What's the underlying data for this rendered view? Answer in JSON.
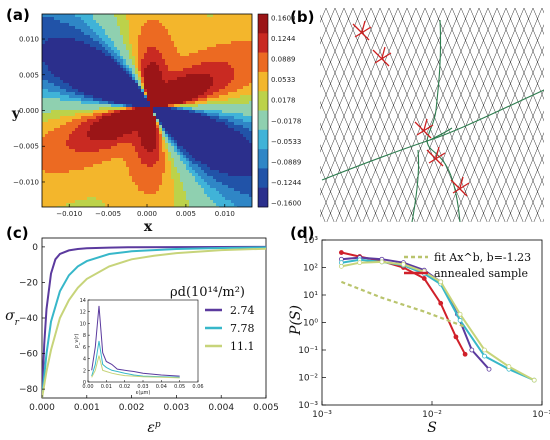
{
  "panels": [
    {
      "label": "(a)"
    },
    {
      "label": "(b)"
    },
    {
      "label": "(c)"
    },
    {
      "label": "(d)"
    }
  ],
  "chart_data": [
    {
      "panel": "(a)",
      "type": "heatmap",
      "xlabel": "x",
      "ylabel": "y",
      "xlim": [
        -0.0135,
        0.0135
      ],
      "ylim": [
        -0.0135,
        0.0135
      ],
      "x_ticks": [
        "−0.010",
        "−0.005",
        "0.000",
        "0.005",
        "0.010"
      ],
      "x_tick_values": [
        -0.01,
        -0.005,
        0,
        0.005,
        0.01
      ],
      "y_ticks": [
        "0.010",
        "0.005",
        "0.000",
        "−0.005",
        "−0.010"
      ],
      "y_tick_values": [
        0.01,
        0.005,
        0,
        -0.005,
        -0.01
      ],
      "colorbar_levels": [
        "0.1600",
        "0.1244",
        "0.0889",
        "0.0533",
        "0.0178",
        "−0.0178",
        "−0.0533",
        "−0.0889",
        "−0.1244",
        "−0.1600"
      ],
      "colorbar_values": [
        0.16,
        0.1244,
        0.0889,
        0.0533,
        0.0178,
        -0.0178,
        -0.0533,
        -0.0889,
        -0.1244,
        -0.16
      ],
      "colormap": [
        "#2b2f8c",
        "#2153a8",
        "#2f86c6",
        "#40b3d8",
        "#8fd0b0",
        "#bcd24a",
        "#f3b62c",
        "#ec6a22",
        "#c92a22",
        "#9b1517"
      ]
    },
    {
      "panel": "(b)",
      "type": "diagram",
      "grid_color": "#333333",
      "line_color": "#2e7d4f",
      "dislocation_color": "#cc1f1f"
    },
    {
      "panel": "(c)",
      "type": "line",
      "xlabel": "ε^p",
      "ylabel": "σ_r",
      "xlim": [
        0.0,
        0.005
      ],
      "ylim": [
        -85,
        5
      ],
      "x_ticks": [
        "0.000",
        "0.001",
        "0.002",
        "0.003",
        "0.004",
        "0.005"
      ],
      "x_tick_values": [
        0,
        0.001,
        0.002,
        0.003,
        0.004,
        0.005
      ],
      "y_ticks": [
        "0",
        "−20",
        "−40",
        "−60",
        "−80"
      ],
      "y_tick_values": [
        0,
        -20,
        -40,
        -60,
        -80
      ],
      "legend_title": "ρd(10¹⁴/m²)",
      "series": [
        {
          "name": "2.74",
          "color": "#5b3a9e",
          "x": [
            0,
            5e-05,
            0.0001,
            0.0002,
            0.0003,
            0.0004,
            0.0006,
            0.0008,
            0.001,
            0.0015,
            0.002,
            0.003,
            0.004,
            0.005
          ],
          "y": [
            -85,
            -55,
            -35,
            -15,
            -7,
            -4,
            -2,
            -1.2,
            -0.8,
            -0.4,
            -0.2,
            -0.1,
            -0.05,
            0
          ]
        },
        {
          "name": "7.78",
          "color": "#37b7c9",
          "x": [
            0,
            0.0001,
            0.0002,
            0.0004,
            0.0006,
            0.0008,
            0.001,
            0.0015,
            0.002,
            0.003,
            0.004,
            0.005
          ],
          "y": [
            -85,
            -60,
            -42,
            -25,
            -16,
            -11,
            -8,
            -4,
            -2.5,
            -1.2,
            -0.6,
            -0.3
          ]
        },
        {
          "name": "11.1",
          "color": "#c7d47a",
          "x": [
            0,
            0.0001,
            0.0002,
            0.0004,
            0.0006,
            0.0008,
            0.001,
            0.0015,
            0.002,
            0.0025,
            0.003,
            0.004,
            0.005
          ],
          "y": [
            -85,
            -70,
            -58,
            -40,
            -30,
            -23,
            -18,
            -11,
            -7,
            -5,
            -3.5,
            -1.8,
            -1
          ]
        }
      ],
      "inset": {
        "xlabel": "ε(μm)",
        "ylabel": "ρ_v(r)",
        "xlim": [
          0,
          0.06
        ],
        "ylim": [
          0,
          14
        ],
        "x_ticks": [
          "0.00",
          "0.01",
          "0.02",
          "0.03",
          "0.04",
          "0.05",
          "0.06"
        ],
        "x_tick_values": [
          0,
          0.01,
          0.02,
          0.03,
          0.04,
          0.05,
          0.06
        ],
        "y_ticks": [
          "14",
          "12",
          "10",
          "8",
          "6",
          "4",
          "2",
          "0"
        ],
        "y_tick_values": [
          14,
          12,
          10,
          8,
          6,
          4,
          2,
          0
        ],
        "series": [
          {
            "name": "2.74",
            "color": "#5b3a9e",
            "x": [
              0.002,
              0.004,
              0.006,
              0.008,
              0.01,
              0.013,
              0.016,
              0.02,
              0.025,
              0.03,
              0.04,
              0.05
            ],
            "y": [
              2,
              6,
              13,
              5,
              3.5,
              3,
              2.2,
              2,
              1.8,
              1.5,
              1.2,
              1
            ]
          },
          {
            "name": "7.78",
            "color": "#37b7c9",
            "x": [
              0.002,
              0.004,
              0.006,
              0.008,
              0.01,
              0.013,
              0.016,
              0.02,
              0.025,
              0.03,
              0.04,
              0.05
            ],
            "y": [
              1,
              3,
              7,
              3,
              2.5,
              2,
              1.8,
              1.5,
              1.2,
              1,
              0.9,
              0.8
            ]
          },
          {
            "name": "11.1",
            "color": "#c7d47a",
            "x": [
              0.002,
              0.004,
              0.006,
              0.008,
              0.01,
              0.013,
              0.016,
              0.02,
              0.025,
              0.03,
              0.04,
              0.05
            ],
            "y": [
              0.8,
              2,
              4.5,
              2,
              1.8,
              1.5,
              1.3,
              1.1,
              1,
              0.9,
              0.8,
              0.7
            ]
          }
        ]
      }
    },
    {
      "panel": "(d)",
      "type": "line",
      "xlabel": "S",
      "ylabel": "P(S)",
      "xscale": "log",
      "yscale": "log",
      "xlim": [
        0.001,
        0.1
      ],
      "ylim": [
        0.001,
        1000
      ],
      "x_ticks": [
        "10⁻³",
        "10⁻²",
        "10⁻¹"
      ],
      "x_tick_values": [
        0.001,
        0.01,
        0.1
      ],
      "y_ticks": [
        "10³",
        "10²",
        "10¹",
        "10⁰",
        "10⁻¹",
        "10⁻²",
        "10⁻³"
      ],
      "y_tick_values": [
        1000,
        100,
        10,
        1,
        0.1,
        0.01,
        0.001
      ],
      "legend": [
        {
          "label": "fit Ax^b, b=-1.23",
          "color": "#b9c46d",
          "style": "dashed"
        },
        {
          "label": "annealed sample",
          "color": "#d0202a",
          "style": "solid"
        }
      ],
      "series": [
        {
          "name": "annealed sample",
          "color": "#d0202a",
          "x": [
            0.0015,
            0.0022,
            0.0035,
            0.0055,
            0.0085,
            0.012,
            0.0165,
            0.02
          ],
          "y": [
            350,
            250,
            170,
            100,
            40,
            5,
            0.3,
            0.07
          ]
        },
        {
          "name": "2.74",
          "color": "#5b3a9e",
          "x": [
            0.0015,
            0.0022,
            0.0035,
            0.0055,
            0.0085,
            0.012,
            0.017,
            0.023,
            0.033
          ],
          "y": [
            200,
            230,
            200,
            150,
            80,
            30,
            2,
            0.1,
            0.02
          ]
        },
        {
          "name": "7.78",
          "color": "#37b7c9",
          "x": [
            0.0015,
            0.0022,
            0.0035,
            0.0055,
            0.0085,
            0.012,
            0.018,
            0.03,
            0.05,
            0.085
          ],
          "y": [
            150,
            190,
            160,
            120,
            60,
            25,
            1.2,
            0.06,
            0.02,
            0.008
          ]
        },
        {
          "name": "11.1",
          "color": "#c7d47a",
          "x": [
            0.0015,
            0.0022,
            0.0035,
            0.0055,
            0.0085,
            0.012,
            0.018,
            0.03,
            0.05,
            0.085
          ],
          "y": [
            110,
            150,
            160,
            130,
            70,
            30,
            2,
            0.1,
            0.025,
            0.008
          ]
        },
        {
          "name": "fit",
          "color": "#b9c46d",
          "dashed": true,
          "x": [
            0.0015,
            0.0035,
            0.0085,
            0.02
          ],
          "y": [
            30,
            8,
            2.5,
            0.7
          ]
        }
      ]
    }
  ]
}
